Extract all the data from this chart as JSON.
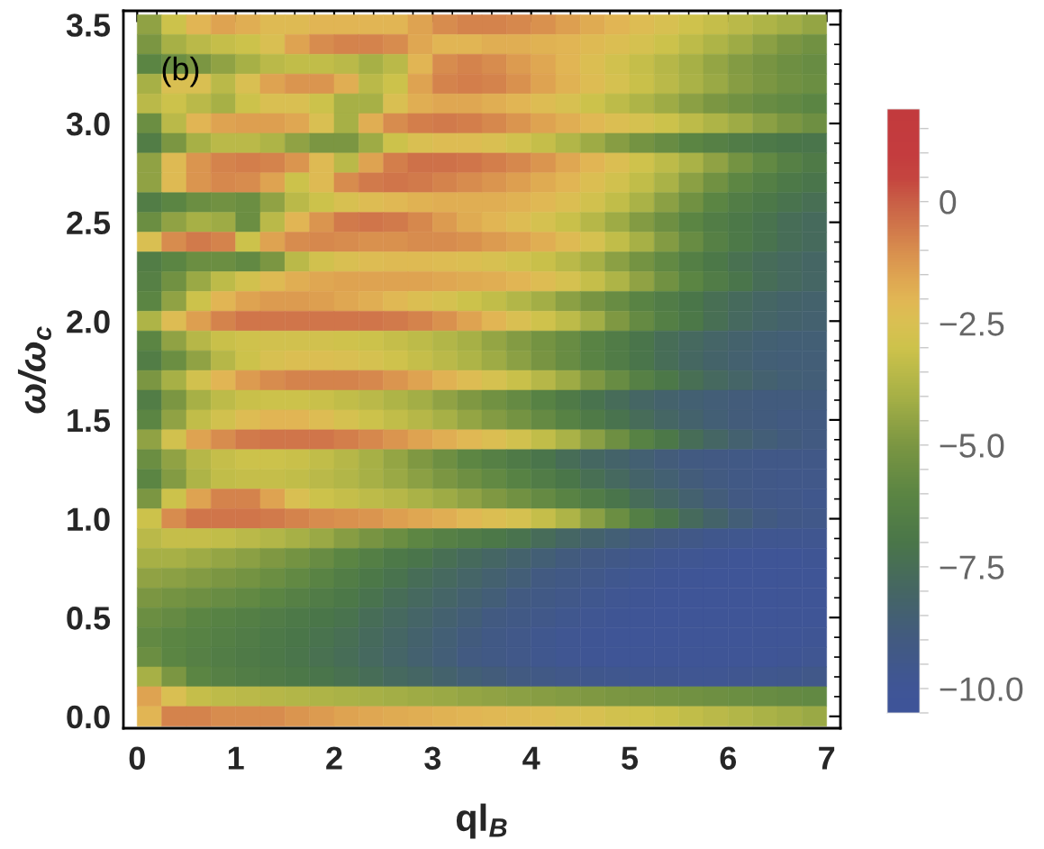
{
  "chart_data": {
    "type": "heatmap",
    "xlabel": "ql$_{B}$",
    "ylabel": "ω/ω$_{c}$",
    "annotations": [
      "(b)"
    ],
    "x": [
      0.125,
      0.375,
      0.625,
      0.875,
      1.125,
      1.375,
      1.625,
      1.875,
      2.125,
      2.375,
      2.625,
      2.875,
      3.125,
      3.375,
      3.625,
      3.875,
      4.125,
      4.375,
      4.625,
      4.875,
      5.125,
      5.375,
      5.625,
      5.875,
      6.125,
      6.375,
      6.625,
      6.875
    ],
    "y": [
      3.5,
      3.4,
      3.3,
      3.2,
      3.1,
      3.0,
      2.9,
      2.8,
      2.7,
      2.6,
      2.5,
      2.4,
      2.3,
      2.2,
      2.1,
      2.0,
      1.9,
      1.8,
      1.7,
      1.6,
      1.5,
      1.4,
      1.3,
      1.2,
      1.1,
      1.0,
      0.9,
      0.8,
      0.7,
      0.6,
      0.5,
      0.4,
      0.3,
      0.2,
      0.1,
      0.0
    ],
    "cells": [
      [
        -4.5,
        -3,
        -2,
        -1.5,
        -1.8,
        -2.2,
        -2.2,
        -2,
        -2,
        -2,
        -2,
        -1.5,
        -1,
        -0.8,
        -0.8,
        -0.9,
        -1.1,
        -1.4,
        -1.7,
        -2,
        -2.3,
        -2.6,
        -2.9,
        -3.2,
        -3.5,
        -3.8,
        -4.1,
        -4.4
      ],
      [
        -5,
        -4,
        -3.5,
        -3.2,
        -3,
        -2.5,
        -1.5,
        -1,
        -0.8,
        -0.8,
        -1,
        -1.6,
        -2,
        -2,
        -1.8,
        -1.8,
        -1.9,
        -2,
        -2.2,
        -2.4,
        -2.7,
        -3,
        -3.4,
        -3.8,
        -4.2,
        -4.6,
        -5,
        -5.3
      ],
      [
        -6,
        -5.5,
        -5,
        -4.5,
        -4,
        -3.5,
        -3.3,
        -3.3,
        -3.5,
        -4,
        -3.5,
        -2,
        -1,
        -0.8,
        -1,
        -1.3,
        -1.6,
        -2,
        -2.4,
        -2.8,
        -3.2,
        -3.6,
        -4,
        -4.4,
        -4.8,
        -5.1,
        -5.4,
        -5.6
      ],
      [
        -4,
        -2.5,
        -2.5,
        -3.5,
        -2.5,
        -1.5,
        -1.2,
        -1.2,
        -1.8,
        -3.5,
        -3,
        -1.5,
        -0.8,
        -0.7,
        -0.8,
        -1.1,
        -1.5,
        -1.9,
        -2.3,
        -2.7,
        -3.1,
        -3.5,
        -3.9,
        -4.3,
        -4.7,
        -5,
        -5.3,
        -5.5
      ],
      [
        -3.5,
        -3,
        -3.5,
        -4,
        -3,
        -2.5,
        -2.5,
        -3,
        -4,
        -4,
        -2.5,
        -1.8,
        -1.6,
        -1.6,
        -1.8,
        -2,
        -2.3,
        -2.6,
        -3,
        -3.4,
        -3.8,
        -4.2,
        -4.6,
        -5,
        -5.3,
        -5.6,
        -5.8,
        -6
      ],
      [
        -5.5,
        -3.5,
        -2,
        -1.5,
        -1.4,
        -1.4,
        -1.6,
        -2.5,
        -4,
        -1.8,
        -1,
        -0.7,
        -0.6,
        -0.7,
        -0.9,
        -1.2,
        -1.5,
        -1.8,
        -2.1,
        -2.4,
        -2.7,
        -3,
        -3.4,
        -3.8,
        -4.2,
        -4.6,
        -5,
        -5.4
      ],
      [
        -6.5,
        -5,
        -4,
        -3.5,
        -3.5,
        -3.8,
        -4.5,
        -5,
        -5,
        -4.2,
        -3,
        -2.5,
        -2.3,
        -2.3,
        -2.5,
        -2.8,
        -3.2,
        -3.7,
        -4.2,
        -4.7,
        -5.2,
        -5.6,
        -6,
        -6.3,
        -6.6,
        -6.8,
        -7,
        -7.1
      ],
      [
        -4.5,
        -2.2,
        -1.2,
        -0.8,
        -0.7,
        -0.8,
        -1.2,
        -2.2,
        -3.5,
        -1.5,
        -0.7,
        -0.4,
        -0.4,
        -0.5,
        -0.7,
        -0.9,
        -1.2,
        -1.6,
        -2,
        -2.4,
        -2.9,
        -3.4,
        -3.9,
        -4.5,
        -5.2,
        -5.8,
        -6.3,
        -6.7
      ],
      [
        -4.5,
        -2.2,
        -1.2,
        -0.9,
        -1,
        -1.5,
        -3,
        -2.2,
        -1,
        -0.6,
        -0.5,
        -0.6,
        -0.8,
        -1,
        -1.2,
        -1.4,
        -1.7,
        -2,
        -2.4,
        -2.8,
        -3.3,
        -3.9,
        -4.6,
        -5.3,
        -5.9,
        -6.4,
        -6.8,
        -7.1
      ],
      [
        -6.5,
        -6,
        -5.5,
        -5.3,
        -5.5,
        -4.5,
        -3.5,
        -3,
        -2.6,
        -2.3,
        -2.1,
        -1.9,
        -1.8,
        -1.8,
        -1.8,
        -1.9,
        -2.1,
        -2.4,
        -2.8,
        -3.3,
        -3.9,
        -4.6,
        -5.3,
        -6,
        -6.5,
        -6.9,
        -7.2,
        -7.4
      ],
      [
        -5.5,
        -4.5,
        -4,
        -4.2,
        -5.5,
        -3.5,
        -2,
        -1.2,
        -0.6,
        -0.5,
        -0.6,
        -0.9,
        -1.3,
        -1.7,
        -2,
        -2.3,
        -2.7,
        -3.1,
        -3.6,
        -4.2,
        -4.8,
        -5.4,
        -6,
        -6.5,
        -6.9,
        -7.2,
        -7.5,
        -7.7
      ],
      [
        -2.5,
        -1,
        -0.6,
        -0.8,
        -3,
        -1.5,
        -1,
        -0.9,
        -1,
        -1.1,
        -1.1,
        -1,
        -1,
        -1.1,
        -1.3,
        -1.5,
        -1.8,
        -2.2,
        -2.7,
        -3.3,
        -4,
        -4.8,
        -5.6,
        -6.3,
        -6.8,
        -7.2,
        -7.5,
        -7.7
      ],
      [
        -6.5,
        -6,
        -5.5,
        -5.5,
        -5.8,
        -5,
        -3.5,
        -2.8,
        -2.5,
        -2.3,
        -2.2,
        -2.2,
        -2.3,
        -2.4,
        -2.6,
        -2.8,
        -3.1,
        -3.5,
        -4,
        -4.6,
        -5.2,
        -5.8,
        -6.4,
        -6.9,
        -7.3,
        -7.6,
        -7.8,
        -8
      ],
      [
        -6.3,
        -5.3,
        -4.3,
        -3.4,
        -2.8,
        -2.2,
        -1.8,
        -1.6,
        -1.5,
        -1.5,
        -1.5,
        -1.5,
        -1.6,
        -1.7,
        -1.8,
        -2,
        -2.3,
        -2.7,
        -3.2,
        -3.8,
        -4.5,
        -5.3,
        -6,
        -6.6,
        -7.1,
        -7.5,
        -7.8,
        -8
      ],
      [
        -6,
        -4.5,
        -3,
        -2,
        -1.5,
        -1.3,
        -1.3,
        -1.4,
        -1.6,
        -1.8,
        -2.1,
        -2.4,
        -2.7,
        -3,
        -3.3,
        -3.7,
        -4.1,
        -4.6,
        -5.1,
        -5.6,
        -6.1,
        -6.6,
        -7,
        -7.4,
        -7.7,
        -8,
        -8.2,
        -8.3
      ],
      [
        -3.8,
        -2.3,
        -1.4,
        -0.8,
        -0.5,
        -0.5,
        -0.5,
        -0.5,
        -0.5,
        -0.5,
        -0.6,
        -0.8,
        -1.1,
        -1.5,
        -2,
        -2.5,
        -2.9,
        -3.4,
        -4.1,
        -4.9,
        -5.7,
        -6.4,
        -6.9,
        -7.4,
        -7.8,
        -8.1,
        -8.3,
        -8.4
      ],
      [
        -6,
        -4.5,
        -3.6,
        -3.1,
        -2.9,
        -2.8,
        -2.8,
        -2.8,
        -2.9,
        -3,
        -3.2,
        -3.4,
        -3.7,
        -4,
        -4.4,
        -4.8,
        -5.2,
        -5.6,
        -6.1,
        -6.6,
        -7.1,
        -7.5,
        -7.8,
        -8.1,
        -8.3,
        -8.5,
        -8.6,
        -8.6
      ],
      [
        -6.5,
        -5.5,
        -4.5,
        -3.6,
        -3,
        -2.6,
        -2.4,
        -2.4,
        -2.5,
        -2.7,
        -2.9,
        -3.2,
        -3.5,
        -3.8,
        -4.2,
        -4.6,
        -5.1,
        -5.6,
        -6.1,
        -6.6,
        -7.1,
        -7.5,
        -7.9,
        -8.2,
        -8.4,
        -8.6,
        -8.7,
        -8.7
      ],
      [
        -5,
        -4,
        -2.8,
        -2,
        -1.3,
        -1,
        -0.8,
        -0.8,
        -0.8,
        -0.9,
        -1.2,
        -1.5,
        -1.9,
        -2.3,
        -2.7,
        -3.1,
        -3.6,
        -4.2,
        -4.9,
        -5.6,
        -6.3,
        -6.9,
        -7.4,
        -7.8,
        -8.1,
        -8.4,
        -8.6,
        -8.7
      ],
      [
        -6.5,
        -5,
        -4,
        -3.4,
        -3.1,
        -3,
        -3,
        -3.1,
        -3.3,
        -3.5,
        -3.8,
        -4.1,
        -4.5,
        -4.9,
        -5.3,
        -5.7,
        -6.2,
        -6.7,
        -7.2,
        -7.6,
        -8,
        -8.3,
        -8.5,
        -8.7,
        -8.8,
        -8.9,
        -8.9,
        -8.9
      ],
      [
        -6,
        -4.5,
        -3.3,
        -2.8,
        -2.3,
        -2,
        -2,
        -2.3,
        -2.7,
        -3,
        -3.3,
        -3.6,
        -4,
        -4.4,
        -4.8,
        -5.2,
        -5.7,
        -6.2,
        -6.7,
        -7.2,
        -7.6,
        -8,
        -8.3,
        -8.6,
        -8.8,
        -8.9,
        -9,
        -9
      ],
      [
        -4.5,
        -2.8,
        -1.5,
        -1,
        -0.6,
        -0.5,
        -0.5,
        -0.5,
        -0.7,
        -0.9,
        -1.2,
        -1.5,
        -1.8,
        -2.1,
        -2.4,
        -2.8,
        -3.3,
        -3.9,
        -4.6,
        -5.4,
        -6.2,
        -6.9,
        -7.5,
        -8,
        -8.4,
        -8.7,
        -8.9,
        -9
      ],
      [
        -5.5,
        -4.5,
        -3.6,
        -3.2,
        -3,
        -3,
        -3.1,
        -3.3,
        -3.6,
        -4,
        -4.4,
        -4.9,
        -5.4,
        -5.9,
        -6.3,
        -6.7,
        -7.1,
        -7.5,
        -7.9,
        -8.2,
        -8.5,
        -8.8,
        -9,
        -9.1,
        -9.2,
        -9.3,
        -9.3,
        -9.3
      ],
      [
        -6,
        -4.8,
        -3.8,
        -3.3,
        -3.2,
        -3.2,
        -3.3,
        -3.5,
        -3.7,
        -4,
        -4.3,
        -4.6,
        -5,
        -5.4,
        -5.8,
        -6.2,
        -6.6,
        -7,
        -7.4,
        -7.8,
        -8.2,
        -8.5,
        -8.8,
        -9,
        -9.2,
        -9.3,
        -9.4,
        -9.4
      ],
      [
        -5,
        -3,
        -1.5,
        -0.8,
        -0.8,
        -1.5,
        -2.5,
        -3,
        -3.2,
        -3.4,
        -3.6,
        -3.9,
        -4.2,
        -4.5,
        -4.9,
        -5.3,
        -5.7,
        -6.1,
        -6.6,
        -7.1,
        -7.6,
        -8,
        -8.4,
        -8.8,
        -9.1,
        -9.3,
        -9.4,
        -9.5
      ],
      [
        -3,
        -1,
        -0.5,
        -0.5,
        -0.5,
        -0.6,
        -0.8,
        -1,
        -1.1,
        -1.2,
        -1.4,
        -1.6,
        -1.8,
        -2.1,
        -2.4,
        -2.7,
        -3.2,
        -3.8,
        -4.6,
        -5.5,
        -6.4,
        -7.1,
        -7.7,
        -8.2,
        -8.7,
        -9,
        -9.3,
        -9.4
      ],
      [
        -3.5,
        -3.2,
        -3.2,
        -3.3,
        -3.5,
        -3.7,
        -4,
        -4.3,
        -4.7,
        -5.1,
        -5.5,
        -5.9,
        -6.3,
        -6.6,
        -6.9,
        -7.2,
        -7.6,
        -8,
        -8.3,
        -8.6,
        -8.9,
        -9.1,
        -9.3,
        -9.5,
        -9.6,
        -9.7,
        -9.7,
        -9.7
      ],
      [
        -4,
        -4,
        -4.2,
        -4.4,
        -4.6,
        -4.9,
        -5.2,
        -5.6,
        -6,
        -6.4,
        -6.8,
        -7.1,
        -7.4,
        -7.7,
        -8,
        -8.3,
        -8.6,
        -8.9,
        -9.1,
        -9.3,
        -9.5,
        -9.7,
        -9.8,
        -9.9,
        -10,
        -10,
        -10,
        -9.9
      ],
      [
        -4.5,
        -4.6,
        -4.8,
        -5,
        -5.2,
        -5.5,
        -5.8,
        -6.1,
        -6.5,
        -6.9,
        -7.2,
        -7.5,
        -7.8,
        -8.1,
        -8.4,
        -8.7,
        -9,
        -9.2,
        -9.4,
        -9.6,
        -9.8,
        -9.9,
        -10,
        -10.1,
        -10.1,
        -10.1,
        -10,
        -10
      ],
      [
        -5,
        -5.2,
        -5.4,
        -5.6,
        -5.8,
        -6,
        -6.3,
        -6.6,
        -6.9,
        -7.2,
        -7.5,
        -7.8,
        -8.1,
        -8.4,
        -8.7,
        -9,
        -9.2,
        -9.4,
        -9.6,
        -9.8,
        -9.9,
        -10,
        -10.1,
        -10.1,
        -10.1,
        -10.1,
        -10,
        -10
      ],
      [
        -5.5,
        -5.7,
        -6,
        -6.2,
        -6.4,
        -6.6,
        -6.8,
        -7,
        -7.2,
        -7.5,
        -7.8,
        -8.1,
        -8.4,
        -8.7,
        -9,
        -9.2,
        -9.4,
        -9.6,
        -9.8,
        -9.9,
        -10,
        -10.1,
        -10.1,
        -10.1,
        -10.1,
        -10.1,
        -10,
        -10
      ],
      [
        -5.8,
        -6,
        -6.2,
        -6.4,
        -6.6,
        -6.8,
        -7,
        -7.2,
        -7.4,
        -7.7,
        -8,
        -8.3,
        -8.6,
        -8.9,
        -9.2,
        -9.4,
        -9.6,
        -9.8,
        -9.9,
        -10,
        -10.1,
        -10.1,
        -10.1,
        -10.1,
        -10.1,
        -10,
        -10,
        -9.9
      ],
      [
        -5.5,
        -6,
        -6.3,
        -6.5,
        -6.7,
        -6.9,
        -7.1,
        -7.3,
        -7.5,
        -7.8,
        -8.1,
        -8.4,
        -8.7,
        -9,
        -9.2,
        -9.4,
        -9.6,
        -9.8,
        -9.9,
        -10,
        -10,
        -10,
        -10,
        -10,
        -10,
        -10,
        -9.9,
        -9.8
      ],
      [
        -4,
        -5,
        -6,
        -6.3,
        -6.5,
        -6.7,
        -6.9,
        -7.1,
        -7.3,
        -7.5,
        -7.8,
        -8,
        -8.3,
        -8.6,
        -8.8,
        -9,
        -9.2,
        -9.4,
        -9.5,
        -9.6,
        -9.7,
        -9.7,
        -9.8,
        -9.8,
        -9.7,
        -9.6,
        -9.5,
        -9.4
      ],
      [
        -1.5,
        -2.5,
        -3.2,
        -3.4,
        -3.5,
        -3.6,
        -3.7,
        -3.8,
        -3.9,
        -4,
        -4.1,
        -4.2,
        -4.3,
        -4.4,
        -4.5,
        -4.6,
        -4.7,
        -4.8,
        -4.9,
        -5,
        -5.1,
        -5.2,
        -5.3,
        -5.4,
        -5.5,
        -5.6,
        -5.7,
        -5.8
      ],
      [
        -2,
        -0.8,
        -0.8,
        -1,
        -1,
        -1,
        -1.2,
        -1.3,
        -1.5,
        -1.6,
        -1.7,
        -1.8,
        -1.9,
        -2,
        -2.1,
        -2.2,
        -2.3,
        -2.5,
        -2.6,
        -2.8,
        -2.9,
        -3.1,
        -3.3,
        -3.5,
        -3.7,
        -3.9,
        -4.1,
        -4.3
      ]
    ],
    "xlim": [
      -0.14,
      7.14
    ],
    "ylim": [
      -0.06,
      3.57
    ],
    "xticks": [
      0,
      1,
      2,
      3,
      4,
      5,
      6,
      7
    ],
    "yticks": [
      {
        "value": 0,
        "label": "0.0"
      },
      0.5,
      {
        "value": 1,
        "label": "1.0"
      },
      1.5,
      {
        "value": 2,
        "label": "2.0"
      },
      2.5,
      {
        "value": 3,
        "label": "3.0"
      },
      3.5
    ],
    "clim": [
      -10.5,
      1.9
    ],
    "cticks": [
      0,
      {
        "value": -2.5,
        "label": "−2.5"
      },
      {
        "value": -5,
        "label": "−5.0"
      },
      {
        "value": -7.5,
        "label": "−7.5"
      },
      {
        "value": -10,
        "label": "−10.0"
      }
    ]
  }
}
